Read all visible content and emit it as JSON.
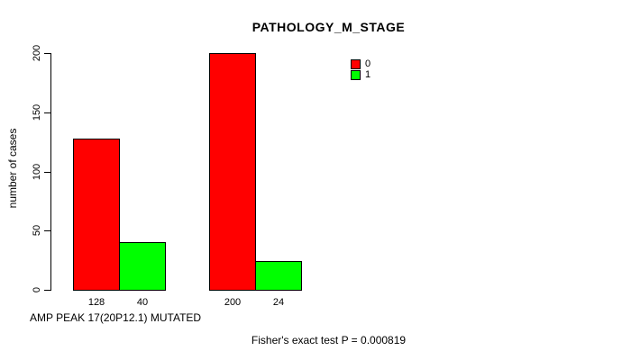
{
  "chart_data": {
    "type": "bar",
    "title": "PATHOLOGY_M_STAGE",
    "ylabel": "number of cases",
    "xlabel": "AMP PEAK 17(20P12.1) MUTATED",
    "caption": "Fisher's exact test P = 0.000819",
    "ylim": [
      0,
      200
    ],
    "yticks": [
      0,
      50,
      100,
      150,
      200
    ],
    "grid": false,
    "groups": 2,
    "legend": {
      "position": "top-right",
      "entries": [
        {
          "label": "0",
          "color": "#FF0000"
        },
        {
          "label": "1",
          "color": "#00FF00"
        }
      ]
    },
    "series": [
      {
        "name": "0",
        "color": "#FF0000",
        "values": [
          128,
          200
        ]
      },
      {
        "name": "1",
        "color": "#00FF00",
        "values": [
          40,
          24
        ]
      }
    ],
    "bar_value_labels": [
      [
        "128",
        "200"
      ],
      [
        "40",
        "24"
      ]
    ]
  },
  "colors": {
    "background": "#FFFFFF",
    "axis": "#000000",
    "bar_border": "#000000"
  }
}
